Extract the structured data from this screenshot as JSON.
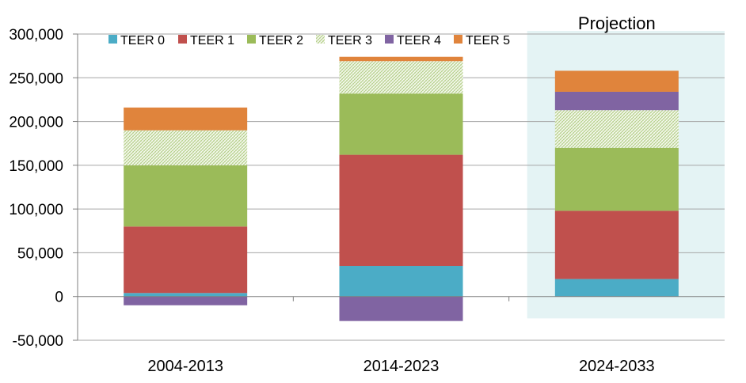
{
  "chart_data": {
    "type": "bar",
    "stacked": true,
    "categories": [
      "2004-2013",
      "2014-2023",
      "2024-2033"
    ],
    "series": [
      {
        "name": "TEER 0",
        "color": "#4bacc6",
        "values": [
          4000,
          35000,
          20000
        ]
      },
      {
        "name": "TEER 1",
        "color": "#c0504d",
        "values": [
          76000,
          127000,
          78000
        ]
      },
      {
        "name": "TEER 2",
        "color": "#9bbb59",
        "values": [
          70000,
          70000,
          72000
        ]
      },
      {
        "name": "TEER 3",
        "color": "#d7e4bd",
        "pattern": "hatch",
        "values": [
          40000,
          37000,
          43000
        ]
      },
      {
        "name": "TEER 4",
        "color": "#8064a2",
        "values": [
          -10000,
          -28000,
          21000
        ]
      },
      {
        "name": "TEER 5",
        "color": "#e0843c",
        "values": [
          26000,
          5000,
          24000
        ]
      }
    ],
    "ylim": [
      -50000,
      300000
    ],
    "yticks": [
      "300,000",
      "250,000",
      "200,000",
      "150,000",
      "100,000",
      "50,000",
      "0",
      "-50,000"
    ],
    "ytick_values": [
      300000,
      250000,
      200000,
      150000,
      100000,
      50000,
      0,
      -50000
    ],
    "grid": true,
    "legend_position": "top",
    "annotation": {
      "text": "Projection",
      "applies_to": "2024-2033",
      "shade_color": "#e4f3f4"
    }
  }
}
